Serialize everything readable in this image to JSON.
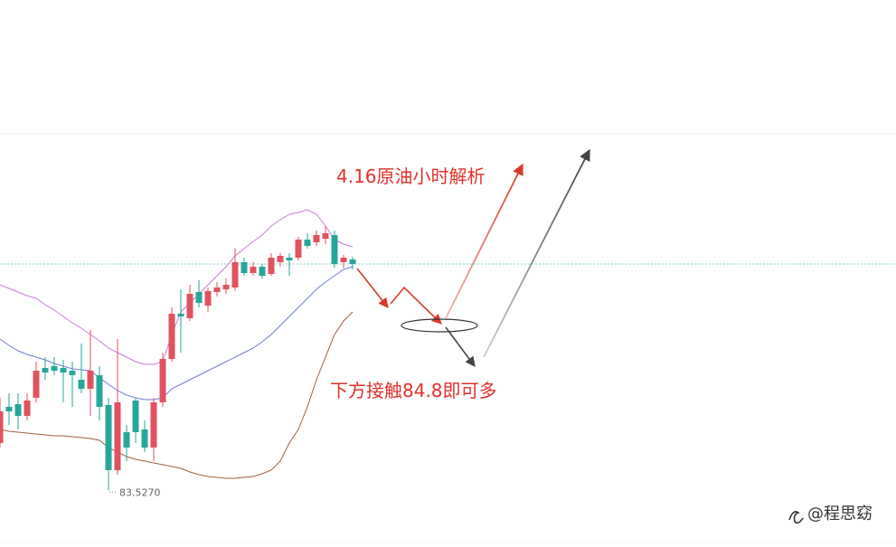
{
  "chart_data": {
    "type": "candlestick",
    "ylim": [
      82.9,
      88.95
    ],
    "up_color": "#e0525f",
    "down_color": "#26a69a",
    "open": [
      84.05,
      84.45,
      84.48,
      84.35,
      84.55,
      84.88,
      84.9,
      84.88,
      84.85,
      84.75,
      84.65,
      84.8,
      84.47,
      83.75,
      84.17,
      84.52,
      84.2,
      84.0,
      84.5,
      84.98,
      85.48,
      85.43,
      85.72,
      85.57,
      85.72,
      85.75,
      85.77,
      86.05,
      85.93,
      86.0,
      85.92,
      86.05,
      86.1,
      86.1,
      86.3,
      86.27,
      86.31,
      86.35,
      86.05,
      86.08
    ],
    "high": [
      84.55,
      84.6,
      84.6,
      84.6,
      84.95,
      85.0,
      85.0,
      84.97,
      84.95,
      85.15,
      85.3,
      84.9,
      84.55,
      85.2,
      84.25,
      84.55,
      84.3,
      84.55,
      85.05,
      85.55,
      85.75,
      85.8,
      85.85,
      85.77,
      85.83,
      85.87,
      86.2,
      86.1,
      86.05,
      86.03,
      86.15,
      86.15,
      86.15,
      86.33,
      86.37,
      86.4,
      86.45,
      86.4,
      86.13,
      86.11
    ],
    "low": [
      84.0,
      84.25,
      84.2,
      84.3,
      84.5,
      84.75,
      84.8,
      84.5,
      84.45,
      84.6,
      84.35,
      84.3,
      83.527,
      83.7,
      83.85,
      84.05,
      83.95,
      83.85,
      84.45,
      84.95,
      85.05,
      85.4,
      85.55,
      85.5,
      85.67,
      85.7,
      85.73,
      85.9,
      85.9,
      85.87,
      85.9,
      86.0,
      85.9,
      86.07,
      86.2,
      86.23,
      86.25,
      85.99,
      85.99,
      85.97
    ],
    "close": [
      84.4,
      84.4,
      84.35,
      84.52,
      84.85,
      84.83,
      84.85,
      84.83,
      84.8,
      84.65,
      84.85,
      84.45,
      83.75,
      84.5,
      84.0,
      84.17,
      84.0,
      84.5,
      84.98,
      85.48,
      85.45,
      85.7,
      85.6,
      85.73,
      85.77,
      85.8,
      86.05,
      85.93,
      86.0,
      85.9,
      86.1,
      86.12,
      86.07,
      86.3,
      86.23,
      86.35,
      86.37,
      86.03,
      86.1,
      86.03
    ],
    "bands": [
      {
        "color": "#c77dd4",
        "values": [
          85.8,
          85.76,
          85.72,
          85.68,
          85.65,
          85.58,
          85.52,
          85.45,
          85.38,
          85.32,
          85.25,
          85.18,
          85.1,
          85.05,
          85.0,
          84.95,
          84.92,
          84.92,
          84.95,
          85.25,
          85.5,
          85.6,
          85.7,
          85.8,
          85.9,
          86.0,
          86.12,
          86.2,
          86.28,
          86.35,
          86.45,
          86.52,
          86.58,
          86.6,
          86.63,
          86.58,
          86.45,
          86.3,
          86.25,
          86.22
        ]
      },
      {
        "color": "#6b7fd7",
        "values": [
          85.2,
          85.13,
          85.07,
          85.03,
          85.0,
          84.97,
          84.93,
          84.9,
          84.87,
          84.86,
          84.85,
          84.77,
          84.7,
          84.63,
          84.58,
          84.55,
          84.53,
          84.53,
          84.55,
          84.65,
          84.7,
          84.75,
          84.8,
          84.85,
          84.9,
          84.95,
          85.0,
          85.05,
          85.1,
          85.17,
          85.25,
          85.35,
          85.45,
          85.55,
          85.65,
          85.75,
          85.83,
          85.9,
          85.97,
          86.0
        ]
      },
      {
        "color": "#a0603e",
        "values": [
          84.2,
          84.18,
          84.17,
          84.16,
          84.15,
          84.14,
          84.13,
          84.13,
          84.12,
          84.11,
          84.1,
          84.08,
          84.0,
          83.95,
          83.9,
          83.87,
          83.85,
          83.83,
          83.81,
          83.79,
          83.77,
          83.73,
          83.7,
          83.68,
          83.67,
          83.66,
          83.66,
          83.67,
          83.68,
          83.71,
          83.75,
          83.85,
          84.05,
          84.2,
          84.45,
          84.75,
          85.0,
          85.25,
          85.4,
          85.5
        ]
      }
    ],
    "last_price": 86.03,
    "last_price_color": "#7fcfc4",
    "low_label": {
      "value": 83.527,
      "label": "83.5270"
    },
    "annotations": [
      "4.16原油小时解析",
      "下方接触84.8即可多"
    ],
    "watermark": "@程思窈"
  }
}
